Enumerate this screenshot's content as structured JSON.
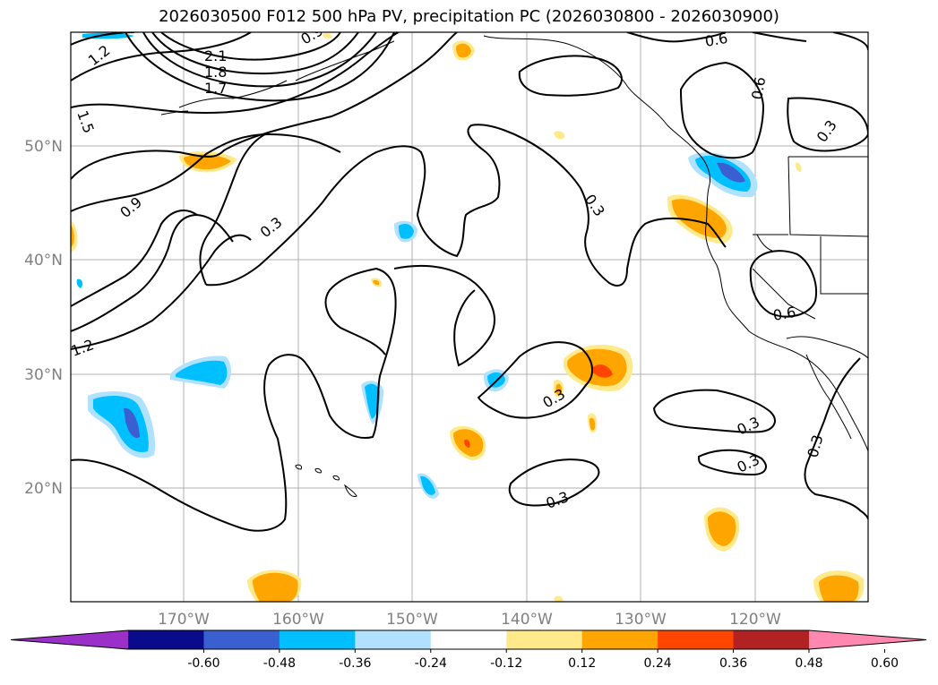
{
  "title": "2026030500 F012 500 hPa PV, precipitation PC (2026030800 - 2026030900)",
  "lat_labels": [
    "50°N",
    "40°N",
    "30°N",
    "20°N"
  ],
  "lon_labels": [
    "170°W",
    "160°W",
    "150°W",
    "140°W",
    "130°W",
    "120°W"
  ],
  "contour_labels": [
    "1.2",
    "2.1",
    "1.8",
    "1.7",
    "0.9",
    "1.5",
    "0.9",
    "0.3",
    "0.6",
    "0.6",
    "0.3",
    "0.3",
    "0.6",
    "0.3",
    "0.3",
    "0.3",
    "0.3",
    "0.3",
    "1.2"
  ],
  "colorbar": {
    "ticks": [
      "-0.60",
      "-0.48",
      "-0.36",
      "-0.24",
      "-0.12",
      "0.12",
      "0.24",
      "0.36",
      "0.48",
      "0.60"
    ],
    "colors": [
      "#9b30c8",
      "#0a0a8c",
      "#3a5fd0",
      "#00bfff",
      "#b0e2ff",
      "#ffffff",
      "#ffe98a",
      "#ffa500",
      "#ff4500",
      "#b22222",
      "#ff88b0"
    ]
  }
}
